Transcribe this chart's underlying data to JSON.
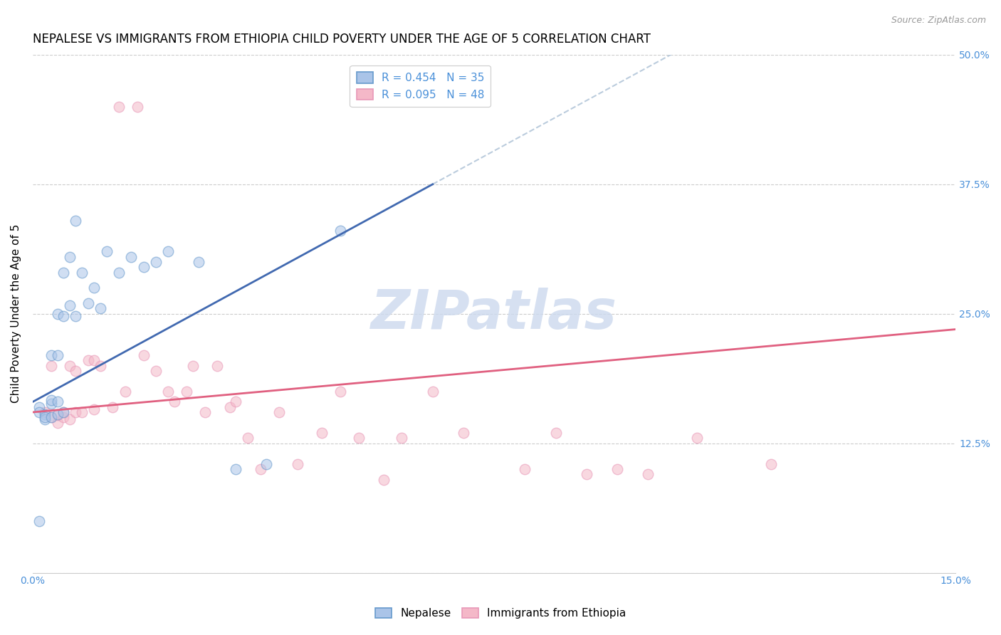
{
  "title": "NEPALESE VS IMMIGRANTS FROM ETHIOPIA CHILD POVERTY UNDER THE AGE OF 5 CORRELATION CHART",
  "source": "Source: ZipAtlas.com",
  "ylabel": "Child Poverty Under the Age of 5",
  "xlim": [
    0.0,
    0.15
  ],
  "ylim": [
    0.0,
    0.5
  ],
  "x_ticks": [
    0.0,
    0.025,
    0.05,
    0.075,
    0.1,
    0.125,
    0.15
  ],
  "y_ticks": [
    0.0,
    0.125,
    0.25,
    0.375,
    0.5
  ],
  "nepalese_color": "#aac4e8",
  "ethiopia_color": "#f4b8c8",
  "nepalese_edge_color": "#6699cc",
  "ethiopia_edge_color": "#e898b8",
  "nepalese_line_color": "#4169b0",
  "ethiopia_line_color": "#e06080",
  "dashed_line_color": "#bbccdd",
  "watermark": "ZIPatlas",
  "watermark_color": "#ccd9ee",
  "tick_color": "#4a90d9",
  "grid_color": "#cccccc",
  "nepalese_R": 0.454,
  "nepalese_N": 35,
  "ethiopia_R": 0.095,
  "ethiopia_N": 48,
  "nepalese_line_x0": 0.0,
  "nepalese_line_y0": 0.165,
  "nepalese_line_x1": 0.065,
  "nepalese_line_y1": 0.375,
  "ethiopia_line_x0": 0.0,
  "ethiopia_line_y0": 0.155,
  "ethiopia_line_x1": 0.15,
  "ethiopia_line_y1": 0.235,
  "nepalese_x": [
    0.001,
    0.001,
    0.002,
    0.002,
    0.002,
    0.003,
    0.003,
    0.003,
    0.003,
    0.004,
    0.004,
    0.004,
    0.004,
    0.005,
    0.005,
    0.005,
    0.006,
    0.006,
    0.007,
    0.007,
    0.008,
    0.009,
    0.01,
    0.011,
    0.012,
    0.014,
    0.016,
    0.018,
    0.02,
    0.022,
    0.027,
    0.033,
    0.038,
    0.05,
    0.001
  ],
  "nepalese_y": [
    0.16,
    0.155,
    0.153,
    0.148,
    0.15,
    0.15,
    0.163,
    0.167,
    0.21,
    0.153,
    0.165,
    0.21,
    0.25,
    0.155,
    0.248,
    0.29,
    0.258,
    0.305,
    0.248,
    0.34,
    0.29,
    0.26,
    0.275,
    0.255,
    0.31,
    0.29,
    0.305,
    0.295,
    0.3,
    0.31,
    0.3,
    0.1,
    0.105,
    0.33,
    0.05
  ],
  "ethiopia_x": [
    0.002,
    0.003,
    0.003,
    0.004,
    0.004,
    0.005,
    0.005,
    0.006,
    0.006,
    0.007,
    0.007,
    0.008,
    0.009,
    0.01,
    0.01,
    0.011,
    0.013,
    0.014,
    0.015,
    0.017,
    0.018,
    0.02,
    0.022,
    0.023,
    0.025,
    0.026,
    0.028,
    0.03,
    0.032,
    0.033,
    0.035,
    0.037,
    0.04,
    0.043,
    0.047,
    0.05,
    0.053,
    0.057,
    0.06,
    0.065,
    0.07,
    0.08,
    0.085,
    0.09,
    0.095,
    0.1,
    0.108,
    0.12
  ],
  "ethiopia_y": [
    0.155,
    0.15,
    0.2,
    0.145,
    0.152,
    0.15,
    0.155,
    0.148,
    0.2,
    0.155,
    0.195,
    0.155,
    0.205,
    0.158,
    0.205,
    0.2,
    0.16,
    0.45,
    0.175,
    0.45,
    0.21,
    0.195,
    0.175,
    0.165,
    0.175,
    0.2,
    0.155,
    0.2,
    0.16,
    0.165,
    0.13,
    0.1,
    0.155,
    0.105,
    0.135,
    0.175,
    0.13,
    0.09,
    0.13,
    0.175,
    0.135,
    0.1,
    0.135,
    0.095,
    0.1,
    0.095,
    0.13,
    0.105
  ],
  "marker_size": 110,
  "marker_alpha": 0.55,
  "marker_linewidth": 1.0,
  "fig_width": 14.06,
  "fig_height": 8.92,
  "dpi": 100
}
